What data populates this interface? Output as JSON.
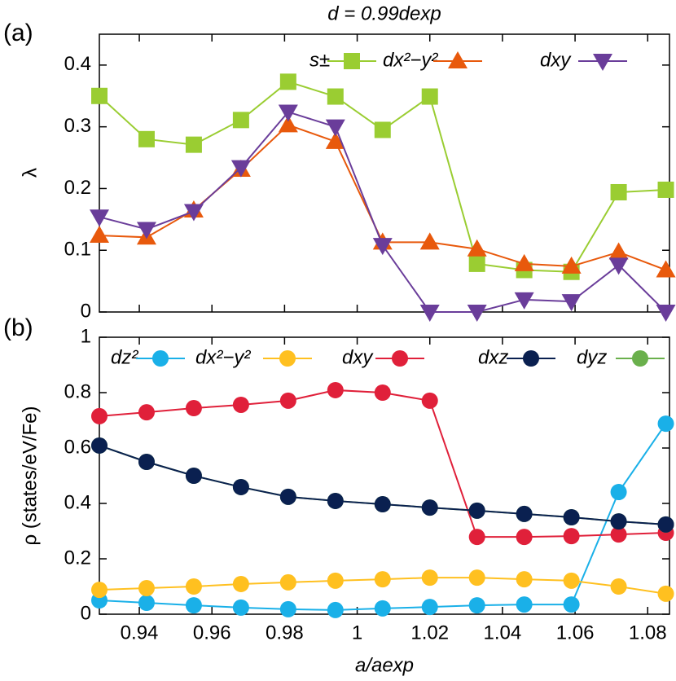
{
  "chart_data": [
    {
      "type": "line",
      "panel_label": "(a)",
      "title": "d = 0.99dexp",
      "y_label": "λ",
      "x": [
        0.929,
        0.942,
        0.955,
        0.968,
        0.981,
        0.994,
        1.007,
        1.02,
        1.033,
        1.046,
        1.059,
        1.072,
        1.085
      ],
      "xlim": [
        0.929,
        1.086
      ],
      "xticks": [
        0.94,
        0.96,
        0.98,
        1,
        1.02,
        1.04,
        1.06,
        1.08
      ],
      "ylim": [
        0,
        0.45
      ],
      "yticks": [
        0,
        0.1,
        0.2,
        0.3,
        0.4
      ],
      "grid": false,
      "series": [
        {
          "name": "s±",
          "color": "#9acd32",
          "marker": "square",
          "values": [
            0.35,
            0.28,
            0.271,
            0.311,
            0.373,
            0.349,
            0.295,
            0.349,
            0.078,
            0.068,
            0.065,
            0.194,
            0.198
          ]
        },
        {
          "name": "dx²−y²",
          "color": "#e8590c",
          "marker": "triangle",
          "values": [
            0.124,
            0.121,
            0.165,
            0.231,
            0.303,
            0.276,
            0.113,
            0.113,
            0.102,
            0.078,
            0.074,
            0.097,
            0.068
          ]
        },
        {
          "name": "dxy",
          "color": "#6a3d9a",
          "marker": "triangle-down",
          "values": [
            0.154,
            0.134,
            0.163,
            0.234,
            0.324,
            0.3,
            0.108,
            0,
            0,
            0.02,
            0.017,
            0.076,
            0
          ]
        }
      ]
    },
    {
      "type": "line",
      "panel_label": "(b)",
      "y_label": "ρ (states/eV/Fe)",
      "x_label": "a/aexp",
      "x": [
        0.929,
        0.942,
        0.955,
        0.968,
        0.981,
        0.994,
        1.007,
        1.02,
        1.033,
        1.046,
        1.059,
        1.072,
        1.085
      ],
      "xlim": [
        0.929,
        1.086
      ],
      "xticks": [
        0.94,
        0.96,
        0.98,
        1,
        1.02,
        1.04,
        1.06,
        1.08
      ],
      "ylim": [
        0,
        1
      ],
      "yticks": [
        0,
        0.2,
        0.4,
        0.6,
        0.8,
        1
      ],
      "grid": false,
      "series": [
        {
          "name": "dz²",
          "color": "#1ab0e8",
          "marker": "circle",
          "values": [
            0.05,
            0.041,
            0.032,
            0.024,
            0.018,
            0.015,
            0.021,
            0.026,
            0.032,
            0.035,
            0.035,
            0.441,
            0.688
          ]
        },
        {
          "name": "dx²−y²",
          "color": "#ffc020",
          "marker": "circle",
          "values": [
            0.088,
            0.094,
            0.1,
            0.109,
            0.115,
            0.121,
            0.126,
            0.132,
            0.132,
            0.126,
            0.121,
            0.1,
            0.074
          ]
        },
        {
          "name": "dxy",
          "color": "#e0203a",
          "marker": "circle",
          "values": [
            0.715,
            0.729,
            0.744,
            0.756,
            0.771,
            0.809,
            0.8,
            0.771,
            0.279,
            0.279,
            0.282,
            0.288,
            0.294
          ]
        },
        {
          "name": "dyz",
          "color": "#6ab04c",
          "marker": "circle",
          "values": [
            0.609,
            0.55,
            0.5,
            0.459,
            0.424,
            0.409,
            0.397,
            0.385,
            0.374,
            0.362,
            0.35,
            0.335,
            0.324
          ]
        },
        {
          "name": "dxz",
          "color": "#0a2050",
          "marker": "circle",
          "values": [
            0.609,
            0.55,
            0.5,
            0.459,
            0.424,
            0.409,
            0.397,
            0.385,
            0.374,
            0.362,
            0.35,
            0.335,
            0.324
          ]
        }
      ]
    }
  ]
}
